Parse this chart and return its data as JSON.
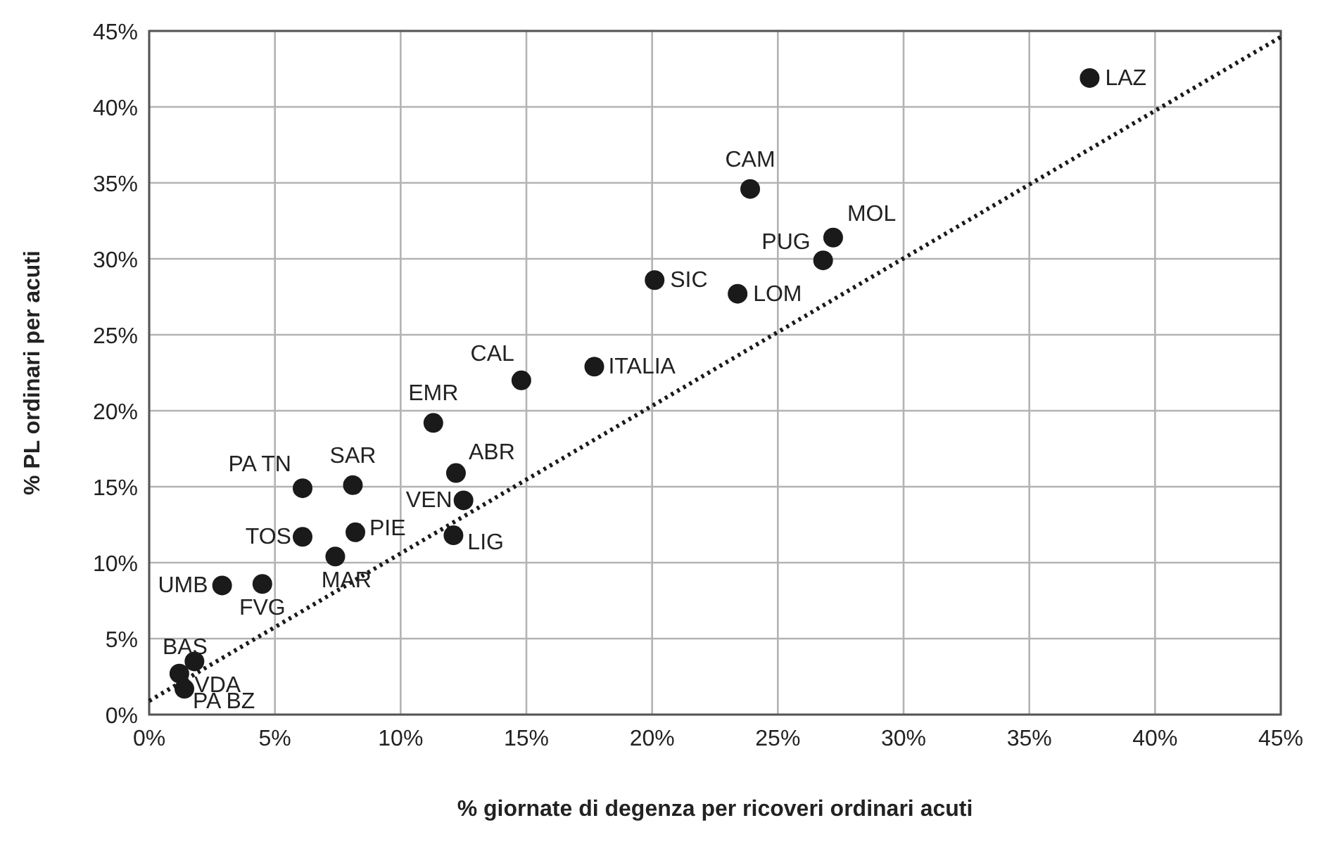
{
  "chart_data": {
    "type": "scatter",
    "xlabel": "% giornate di degenza per ricoveri ordinari acuti",
    "ylabel": "% PL ordinari per acuti",
    "xlim": [
      0,
      45
    ],
    "ylim": [
      0,
      45
    ],
    "xticks": [
      {
        "value": 0,
        "label": "0%"
      },
      {
        "value": 5,
        "label": "5%"
      },
      {
        "value": 10,
        "label": "10%"
      },
      {
        "value": 15,
        "label": "15%"
      },
      {
        "value": 20,
        "label": "20%"
      },
      {
        "value": 25,
        "label": "25%"
      },
      {
        "value": 30,
        "label": "30%"
      },
      {
        "value": 35,
        "label": "35%"
      },
      {
        "value": 40,
        "label": "40%"
      },
      {
        "value": 45,
        "label": "45%"
      }
    ],
    "yticks": [
      {
        "value": 0,
        "label": "0%"
      },
      {
        "value": 5,
        "label": "5%"
      },
      {
        "value": 10,
        "label": "10%"
      },
      {
        "value": 15,
        "label": "15%"
      },
      {
        "value": 20,
        "label": "20%"
      },
      {
        "value": 25,
        "label": "25%"
      },
      {
        "value": 30,
        "label": "30%"
      },
      {
        "value": 35,
        "label": "35%"
      },
      {
        "value": 40,
        "label": "40%"
      },
      {
        "value": 45,
        "label": "45%"
      }
    ],
    "grid": true,
    "marker": "circle",
    "series": [
      {
        "color": "#1a1a1a",
        "x": [
          37.4,
          23.9,
          27.2,
          26.8,
          20.1,
          23.4,
          14.8,
          17.7,
          11.3,
          12.2,
          8.1,
          6.1,
          12.5,
          6.1,
          8.2,
          12.1,
          7.4,
          2.9,
          4.5,
          1.2,
          1.8,
          1.4
        ],
        "values": [
          41.9,
          34.6,
          31.4,
          29.9,
          28.6,
          27.7,
          22.0,
          22.9,
          19.2,
          15.9,
          15.1,
          14.9,
          14.1,
          11.7,
          12.0,
          11.8,
          10.4,
          8.5,
          8.6,
          2.7,
          3.5,
          1.7
        ]
      },
      {
        "type": "line",
        "color": "#1a1a1a",
        "line_style": "dotted",
        "marker": "none",
        "x": [
          0,
          45
        ],
        "values": [
          0.9,
          44.6
        ]
      }
    ],
    "annotations": [
      {
        "text": "LAZ",
        "x": 37.4,
        "y": 41.9
      },
      {
        "text": "CAM",
        "x": 23.9,
        "y": 34.6
      },
      {
        "text": "MOL",
        "x": 27.2,
        "y": 31.4
      },
      {
        "text": "PUG",
        "x": 26.8,
        "y": 29.9
      },
      {
        "text": "SIC",
        "x": 20.1,
        "y": 28.6
      },
      {
        "text": "LOM",
        "x": 23.4,
        "y": 27.7
      },
      {
        "text": "CAL",
        "x": 14.8,
        "y": 22.0
      },
      {
        "text": "ITALIA",
        "x": 17.7,
        "y": 22.9
      },
      {
        "text": "EMR",
        "x": 11.3,
        "y": 19.2
      },
      {
        "text": "ABR",
        "x": 12.2,
        "y": 15.9
      },
      {
        "text": "SAR",
        "x": 8.1,
        "y": 15.1
      },
      {
        "text": "PA TN",
        "x": 6.1,
        "y": 14.9
      },
      {
        "text": "VEN",
        "x": 12.5,
        "y": 14.1
      },
      {
        "text": "TOS",
        "x": 6.1,
        "y": 11.7
      },
      {
        "text": "PIE",
        "x": 8.2,
        "y": 12.0
      },
      {
        "text": "LIG",
        "x": 12.1,
        "y": 11.8
      },
      {
        "text": "MAR",
        "x": 7.4,
        "y": 10.4
      },
      {
        "text": "UMB",
        "x": 2.9,
        "y": 8.5
      },
      {
        "text": "FVG",
        "x": 4.5,
        "y": 8.6
      },
      {
        "text": "BAS",
        "x": 1.2,
        "y": 2.7
      },
      {
        "text": "VDA",
        "x": 1.8,
        "y": 3.5
      },
      {
        "text": "PA BZ",
        "x": 1.4,
        "y": 1.7
      }
    ]
  }
}
